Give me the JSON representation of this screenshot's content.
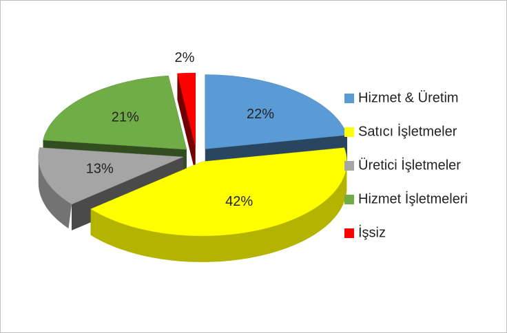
{
  "chart_data": {
    "type": "pie",
    "categories": [
      "Hizmet & Üretim",
      "Satıcı İşletmeler",
      "Üretici İşletmeler",
      "Hizmet İşletmeleri",
      "İşsiz"
    ],
    "values": [
      22,
      42,
      13,
      21,
      2
    ],
    "value_labels": [
      "22%",
      "42%",
      "13%",
      "21%",
      "2%"
    ],
    "colors": [
      "#5b9bd5",
      "#ffff00",
      "#a5a5a5",
      "#70ad47",
      "#ff0000"
    ],
    "legend": "right"
  }
}
